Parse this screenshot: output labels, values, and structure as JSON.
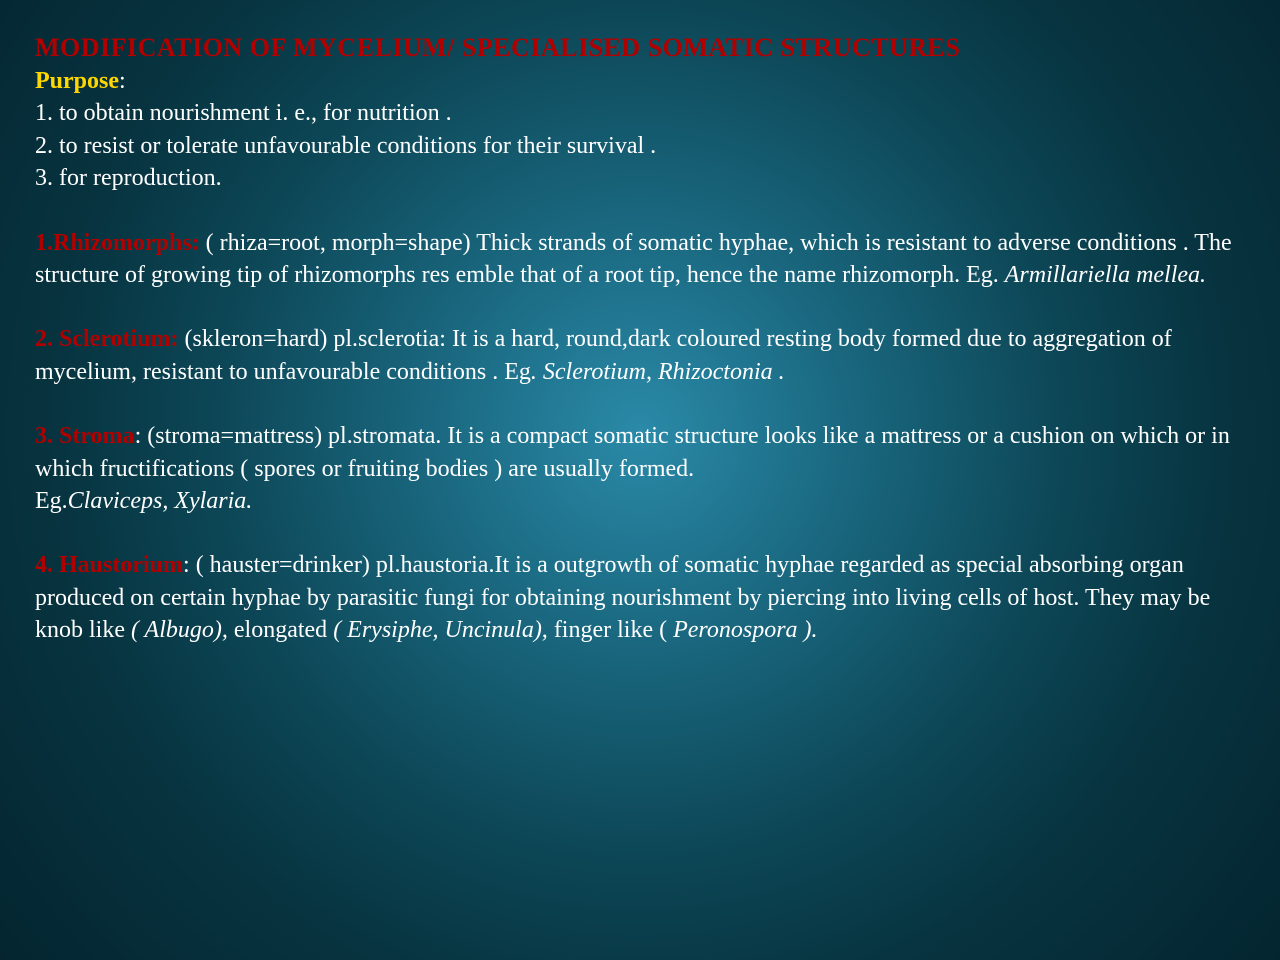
{
  "colors": {
    "title": "#b00000",
    "purpose": "#ffd700",
    "section": "#b00000",
    "body": "#ffffff",
    "bg_center": "#2a8aa8",
    "bg_edge": "#042530"
  },
  "fontsize": {
    "title": 26,
    "body": 24
  },
  "title": "MODIFICATION OF MYCELIUM/ SPECIALISED SOMATIC STRUCTURES",
  "purpose_label": "Purpose",
  "purpose_colon": ":",
  "purpose_items": [
    "1. to obtain nourishment i. e., for nutrition .",
    "2. to resist or tolerate unfavourable conditions for their survival .",
    "3. for reproduction."
  ],
  "sections": [
    {
      "label": "1.Rhizomorphs:",
      "body": " ( rhiza=root, morph=shape) Thick strands of somatic hyphae, which  is resistant to adverse conditions . The structure of growing tip of rhizomorphs res emble that of a root tip, hence the name rhizomorph. Eg. ",
      "italic_tail": "Armillariella mellea."
    },
    {
      "label": "2. Sclerotium:",
      "body": " (skleron=hard) pl.sclerotia: It is a hard, round,dark coloured resting body formed due to aggregation of mycelium, resistant to unfavourable conditions . Eg",
      "italic_tail": ". Sclerotium, Rhizoctonia ."
    },
    {
      "label": "3. Stroma",
      "label_tail": ":",
      "body": " (stroma=mattress) pl.stromata. It is a compact somatic structure looks like a mattress or a cushion on which or in which fructifications ( spores or fruiting bodies ) are usually formed.",
      "eg_line_prefix": " Eg.",
      "eg_line_italic": "Claviceps, Xylaria."
    },
    {
      "label": "4. Haustorium",
      "label_tail": ":",
      "body": " ( hauster=drinker) pl.haustoria.It is a outgrowth of somatic hyphae regarded as special absorbing organ produced on certain hyphae by parasitic fungi for obtaining nourishment by piercing into living cells of host. They may be knob like ",
      "mix": [
        {
          "t": "( Albugo), ",
          "i": true
        },
        {
          "t": "elongated ",
          "i": false
        },
        {
          "t": "( Erysiphe, Uncinula), ",
          "i": true
        },
        {
          "t": "finger like ( ",
          "i": false
        },
        {
          "t": "Peronospora ).",
          "i": true
        }
      ]
    }
  ]
}
